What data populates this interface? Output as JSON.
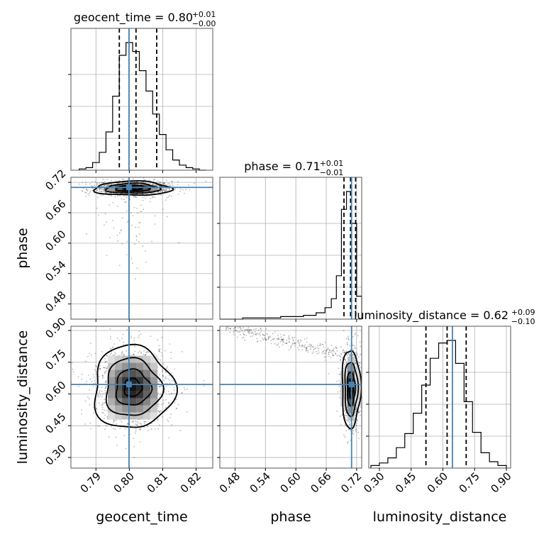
{
  "chart_data": {
    "type": "corner",
    "parameters": [
      "geocent_time",
      "phase",
      "luminosity_distance"
    ],
    "axis_labels": [
      "geocent_time",
      "phase",
      "luminosity_distance"
    ],
    "ranges": [
      [
        0.7825,
        0.825
      ],
      [
        0.45,
        0.73
      ],
      [
        0.25,
        0.92
      ]
    ],
    "ticks": [
      [
        0.79,
        0.8,
        0.81,
        0.82
      ],
      [
        0.48,
        0.54,
        0.6,
        0.66,
        0.72
      ],
      [
        0.3,
        0.45,
        0.6,
        0.75,
        0.9
      ]
    ],
    "tick_labels": [
      [
        "0.79",
        "0.80",
        "0.81",
        "0.82"
      ],
      [
        "0.48",
        "0.54",
        "0.60",
        "0.66",
        "0.72"
      ],
      [
        "0.30",
        "0.45",
        "0.60",
        "0.75",
        "0.90"
      ]
    ],
    "truths": [
      0.7999,
      0.71,
      0.645
    ],
    "truth_color": "#4682b4",
    "titles": [
      {
        "param": "geocent_time",
        "value": "0.80",
        "plus": "+0.01",
        "minus": "−0.00"
      },
      {
        "param": "phase",
        "value": "0.71",
        "plus": "+0.01",
        "minus": "−0.01"
      },
      {
        "param": "luminosity_distance",
        "value": "0.62",
        "plus": "+0.09",
        "minus": "−0.10"
      }
    ],
    "quantiles": [
      [
        0.797,
        0.802,
        0.8082
      ],
      [
        0.695,
        0.708,
        0.718
      ],
      [
        0.52,
        0.62,
        0.71
      ]
    ],
    "histograms": [
      {
        "x": [
          0.786,
          0.788,
          0.79,
          0.792,
          0.794,
          0.796,
          0.798,
          0.8,
          0.802,
          0.804,
          0.806,
          0.808,
          0.81,
          0.812,
          0.814,
          0.816,
          0.818,
          0.82,
          0.822
        ],
        "counts": [
          1,
          2,
          6,
          14,
          30,
          58,
          90,
          100,
          93,
          78,
          62,
          44,
          28,
          16,
          8,
          4,
          2,
          1,
          0
        ]
      },
      {
        "x": [
          0.45,
          0.54,
          0.6,
          0.63,
          0.65,
          0.665,
          0.675,
          0.685,
          0.695,
          0.705,
          0.715,
          0.725
        ],
        "counts": [
          0,
          1,
          2,
          3,
          5,
          9,
          16,
          34,
          86,
          100,
          75,
          18
        ]
      },
      {
        "x": [
          0.28,
          0.32,
          0.36,
          0.4,
          0.44,
          0.48,
          0.52,
          0.56,
          0.6,
          0.64,
          0.68,
          0.72,
          0.76,
          0.8,
          0.84,
          0.88
        ],
        "counts": [
          2,
          4,
          8,
          16,
          27,
          43,
          65,
          86,
          98,
          100,
          82,
          52,
          28,
          12,
          5,
          2
        ]
      }
    ],
    "contour_panels": [
      {
        "row": 1,
        "col": 0,
        "x": "geocent_time",
        "y": "phase",
        "mean": [
          0.801,
          0.708
        ],
        "sd": [
          0.005,
          0.006
        ],
        "rot": 0.0,
        "levels": [
          0.5,
          1.0,
          1.6,
          2.3
        ]
      },
      {
        "row": 2,
        "col": 0,
        "x": "geocent_time",
        "y": "luminosity_distance",
        "mean": [
          0.801,
          0.63
        ],
        "sd": [
          0.0052,
          0.085
        ],
        "rot": 0.0,
        "levels": [
          0.5,
          1.0,
          1.6,
          2.3
        ]
      },
      {
        "row": 2,
        "col": 1,
        "x": "phase",
        "y": "luminosity_distance",
        "mean": [
          0.709,
          0.625
        ],
        "sd": [
          0.008,
          0.08
        ],
        "rot": 0.0,
        "levels": [
          0.5,
          1.0,
          1.6,
          2.3
        ]
      }
    ]
  }
}
